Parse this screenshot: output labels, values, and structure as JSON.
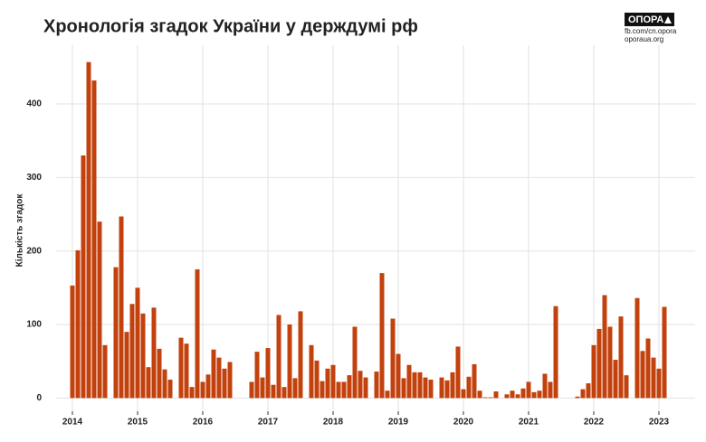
{
  "chart_data": {
    "type": "bar",
    "title": "Хронологія згадок України у держдумі рф",
    "y_label": "Кількість згадок",
    "categories": [
      "2014",
      null,
      null,
      null,
      null,
      null,
      null,
      null,
      null,
      null,
      null,
      null,
      "2015",
      null,
      null,
      null,
      null,
      null,
      null,
      null,
      null,
      null,
      null,
      null,
      "2016",
      null,
      null,
      null,
      null,
      null,
      null,
      null,
      null,
      null,
      null,
      null,
      "2017",
      null,
      null,
      null,
      null,
      null,
      null,
      null,
      null,
      null,
      null,
      null,
      "2018",
      null,
      null,
      null,
      null,
      null,
      null,
      null,
      null,
      null,
      null,
      null,
      "2019",
      null,
      null,
      null,
      null,
      null,
      null,
      null,
      null,
      null,
      null,
      null,
      "2020",
      null,
      null,
      null,
      null,
      null,
      null,
      null,
      null,
      null,
      null,
      null,
      "2021",
      null,
      null,
      null,
      null,
      null,
      null,
      null,
      null,
      null,
      null,
      null,
      "2022",
      null,
      null,
      null,
      null,
      null,
      null,
      null,
      null,
      null,
      null,
      null,
      "2023",
      null
    ],
    "values": [
      153,
      201,
      330,
      457,
      432,
      240,
      72,
      0,
      178,
      247,
      90,
      128,
      150,
      115,
      42,
      123,
      67,
      39,
      25,
      0,
      82,
      74,
      15,
      175,
      22,
      32,
      66,
      55,
      40,
      49,
      0,
      0,
      0,
      22,
      63,
      28,
      68,
      18,
      113,
      15,
      100,
      27,
      118,
      0,
      72,
      51,
      23,
      40,
      45,
      22,
      22,
      31,
      97,
      37,
      28,
      0,
      36,
      170,
      10,
      108,
      60,
      27,
      45,
      35,
      35,
      28,
      25,
      0,
      28,
      24,
      35,
      70,
      12,
      29,
      46,
      10,
      1,
      1,
      9,
      0,
      5,
      10,
      5,
      13,
      22,
      8,
      10,
      33,
      22,
      125,
      0,
      0,
      0,
      2,
      12,
      20,
      72,
      94,
      140,
      97,
      52,
      111,
      31,
      0,
      136,
      64,
      81,
      55,
      40,
      124
    ],
    "color": "#c2410c",
    "ylim": [
      -18,
      480
    ],
    "yticks": [
      0,
      100,
      200,
      300,
      400
    ],
    "grid": true
  },
  "branding": {
    "name": "ОПОРА",
    "links": [
      "fb.com/cn.opora",
      "oporaua.org"
    ]
  }
}
